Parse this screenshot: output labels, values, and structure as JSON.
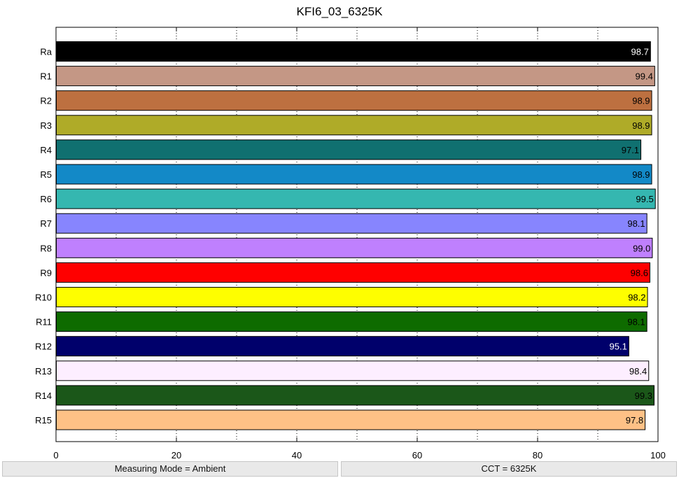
{
  "chart_data": {
    "type": "bar",
    "orientation": "horizontal",
    "title": "KFI6_03_6325K",
    "xlabel": "",
    "ylabel": "",
    "xlim": [
      0,
      100
    ],
    "xticks": [
      0,
      20,
      40,
      60,
      80,
      100
    ],
    "grid": "dotted vertical lines at every 10",
    "categories": [
      "Ra",
      "R1",
      "R2",
      "R3",
      "R4",
      "R5",
      "R6",
      "R7",
      "R8",
      "R9",
      "R10",
      "R11",
      "R12",
      "R13",
      "R14",
      "R15"
    ],
    "values": [
      98.7,
      99.4,
      98.9,
      98.9,
      97.1,
      98.9,
      99.5,
      98.1,
      99.0,
      98.6,
      98.2,
      98.1,
      95.1,
      98.4,
      99.3,
      97.8
    ],
    "labels": [
      "98.7",
      "99.4",
      "98.9",
      "98.9",
      "97.1",
      "98.9",
      "99.5",
      "98.1",
      "99.0",
      "98.6",
      "98.2",
      "98.1",
      "95.1",
      "98.4",
      "99.3",
      "97.8"
    ],
    "colors": [
      "#000000",
      "#c49785",
      "#bd7040",
      "#afab28",
      "#107070",
      "#1389c7",
      "#35b7b0",
      "#8785fe",
      "#bf80fe",
      "#fe0000",
      "#fefe00",
      "#0e6b00",
      "#00006b",
      "#fdeeff",
      "#1b5719",
      "#fec186"
    ],
    "label_colors": [
      "#ffffff",
      "#000000",
      "#000000",
      "#000000",
      "#000000",
      "#000000",
      "#000000",
      "#000000",
      "#000000",
      "#000000",
      "#000000",
      "#000000",
      "#ffffff",
      "#000000",
      "#000000",
      "#000000"
    ]
  },
  "status": {
    "mode": "Measuring Mode = Ambient",
    "cct": "CCT = 6325K"
  }
}
